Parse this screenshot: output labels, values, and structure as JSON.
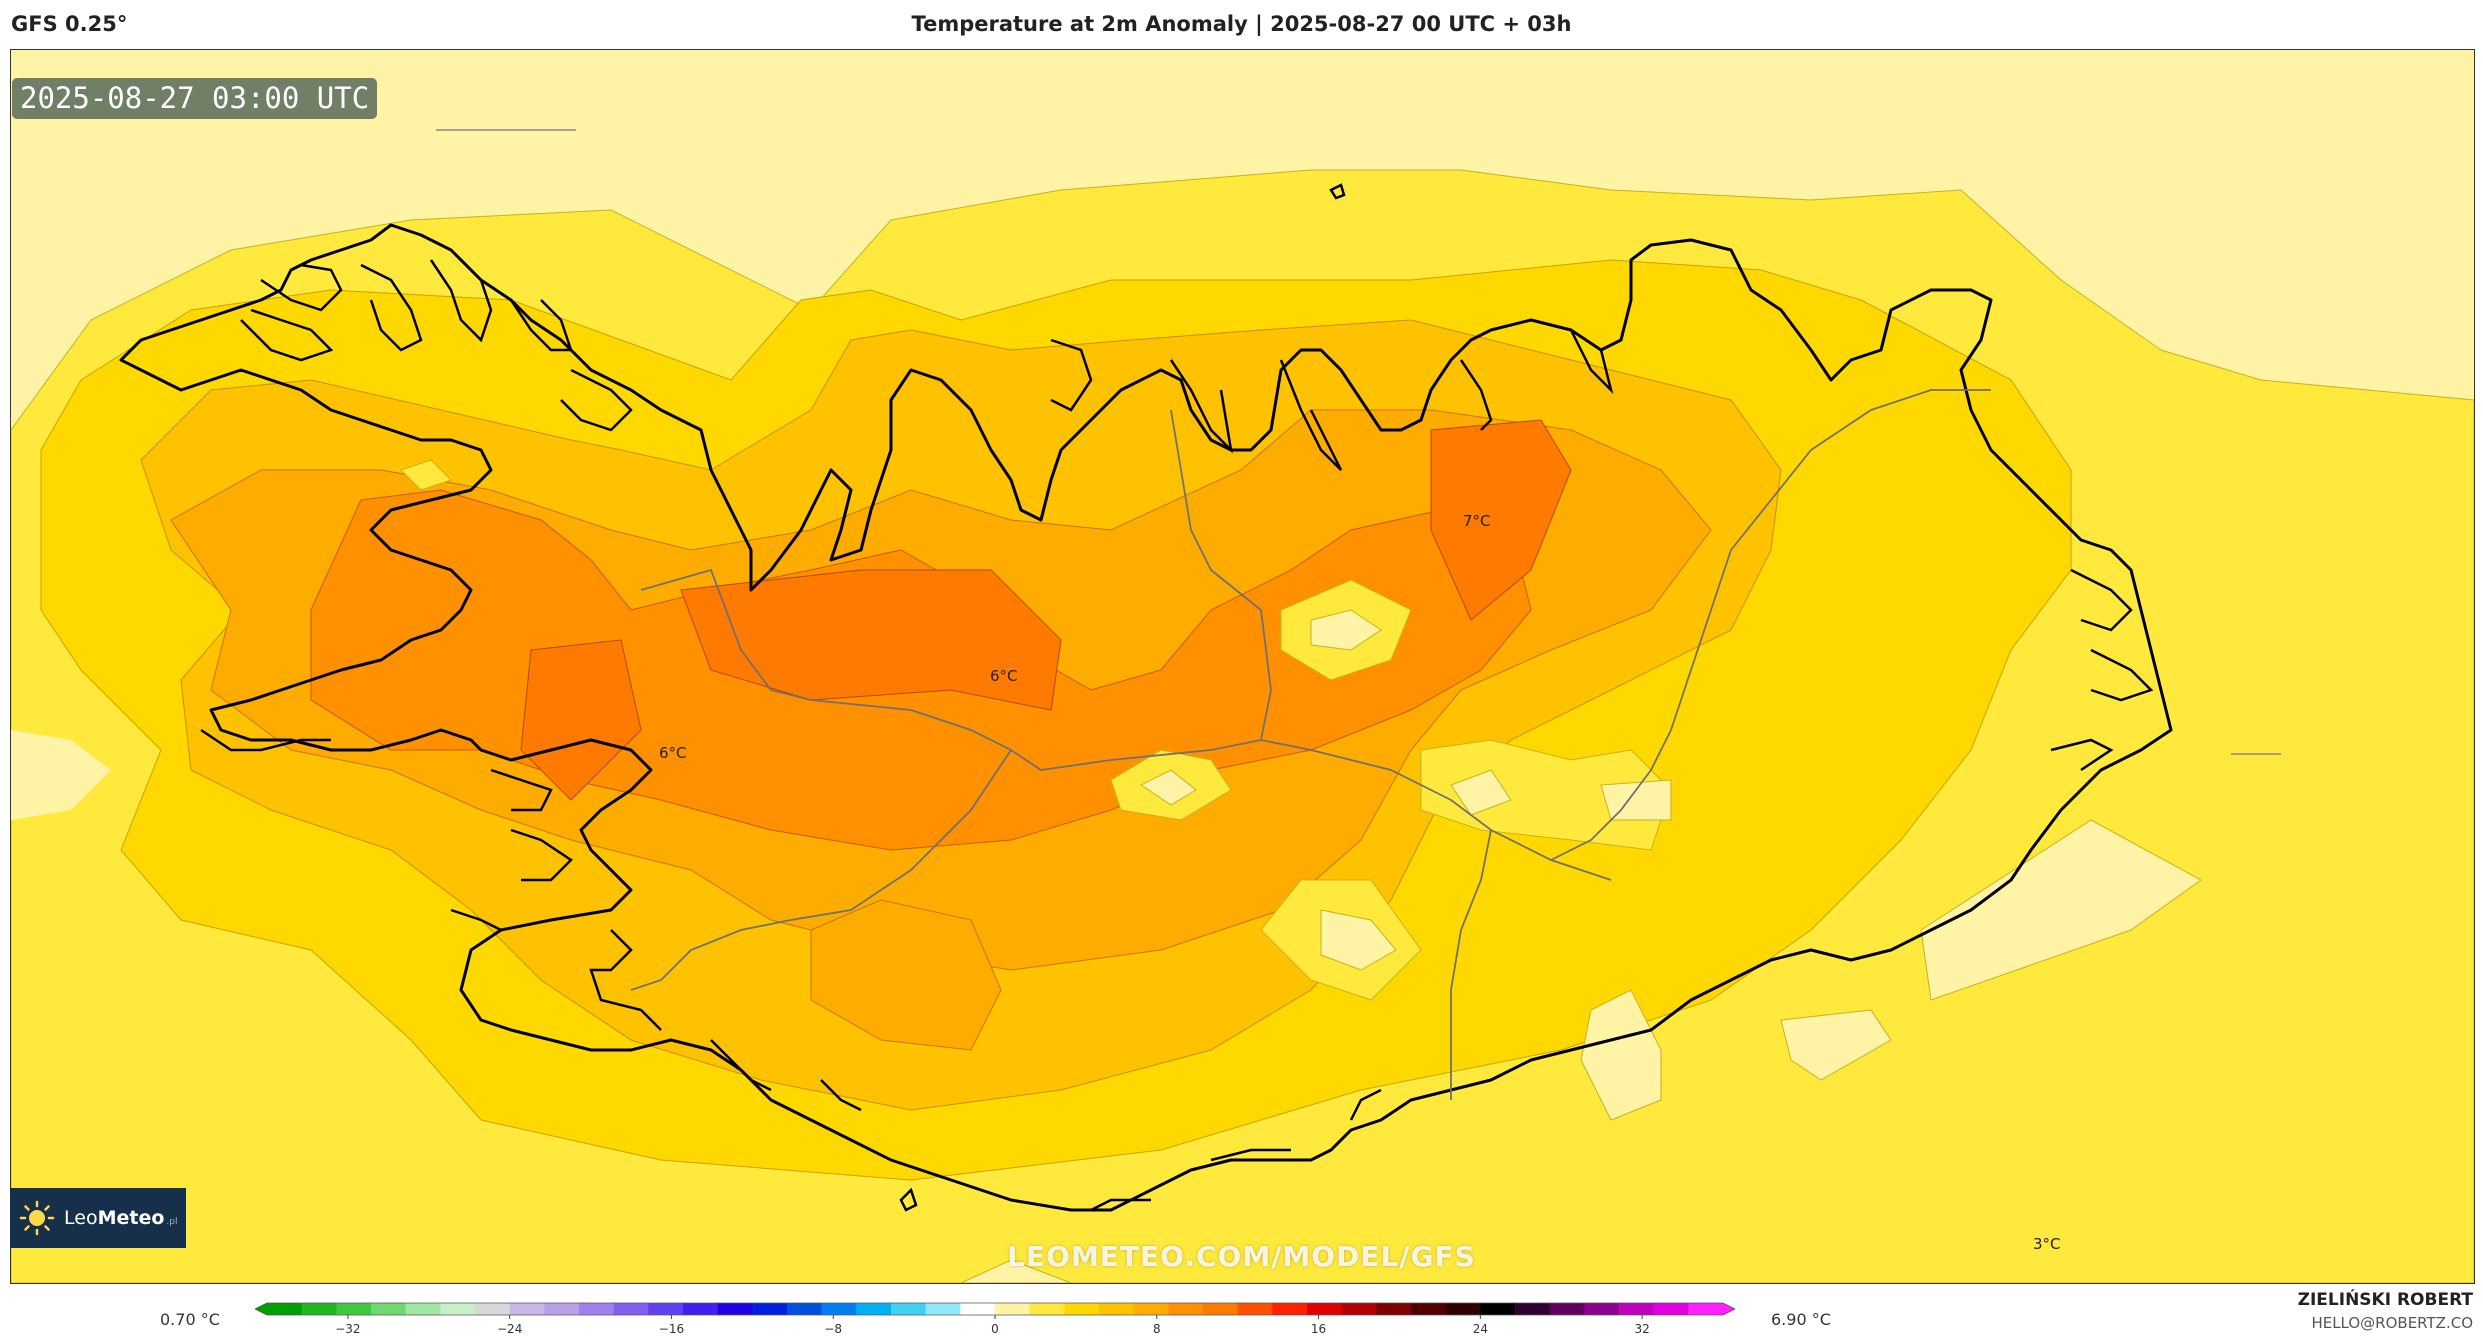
{
  "header": {
    "model": "GFS 0.25°",
    "title": "Temperature at 2m Anomaly | 2025-08-27 00 UTC + 03h"
  },
  "map": {
    "timestamp": "2025-08-27 03:00 UTC",
    "region": "Iceland",
    "labels": [
      "7°C",
      "6°C",
      "6°C",
      "3°C"
    ],
    "watermark": "LEOMETEO.COM/MODEL/GFS",
    "fill_colors": {
      "level_0_2": "#fff3a5",
      "level_2_3": "#ffe93c",
      "level_3_4": "#ffd800",
      "level_4_5": "#ffc200",
      "level_5_6": "#ffac00",
      "level_6_7": "#ff9000",
      "level_7_8": "#ff7a00",
      "coastline": "#000000",
      "borders": "#666666"
    }
  },
  "logo": {
    "brand_light": "Leo",
    "brand_bold": "Meteo",
    "suffix": ".pl",
    "icon": "sun-icon"
  },
  "legend": {
    "min_label": "0.70 °C",
    "max_label": "6.90 °C",
    "ticks": [
      "−32",
      "−24",
      "−16",
      "−8",
      "0",
      "8",
      "16",
      "24",
      "32"
    ],
    "scale_min": -36,
    "scale_max": 36
  },
  "footer": {
    "author_name": "ZIELIŃSKI ROBERT",
    "author_email": "HELLO@ROBERTZ.CO"
  }
}
